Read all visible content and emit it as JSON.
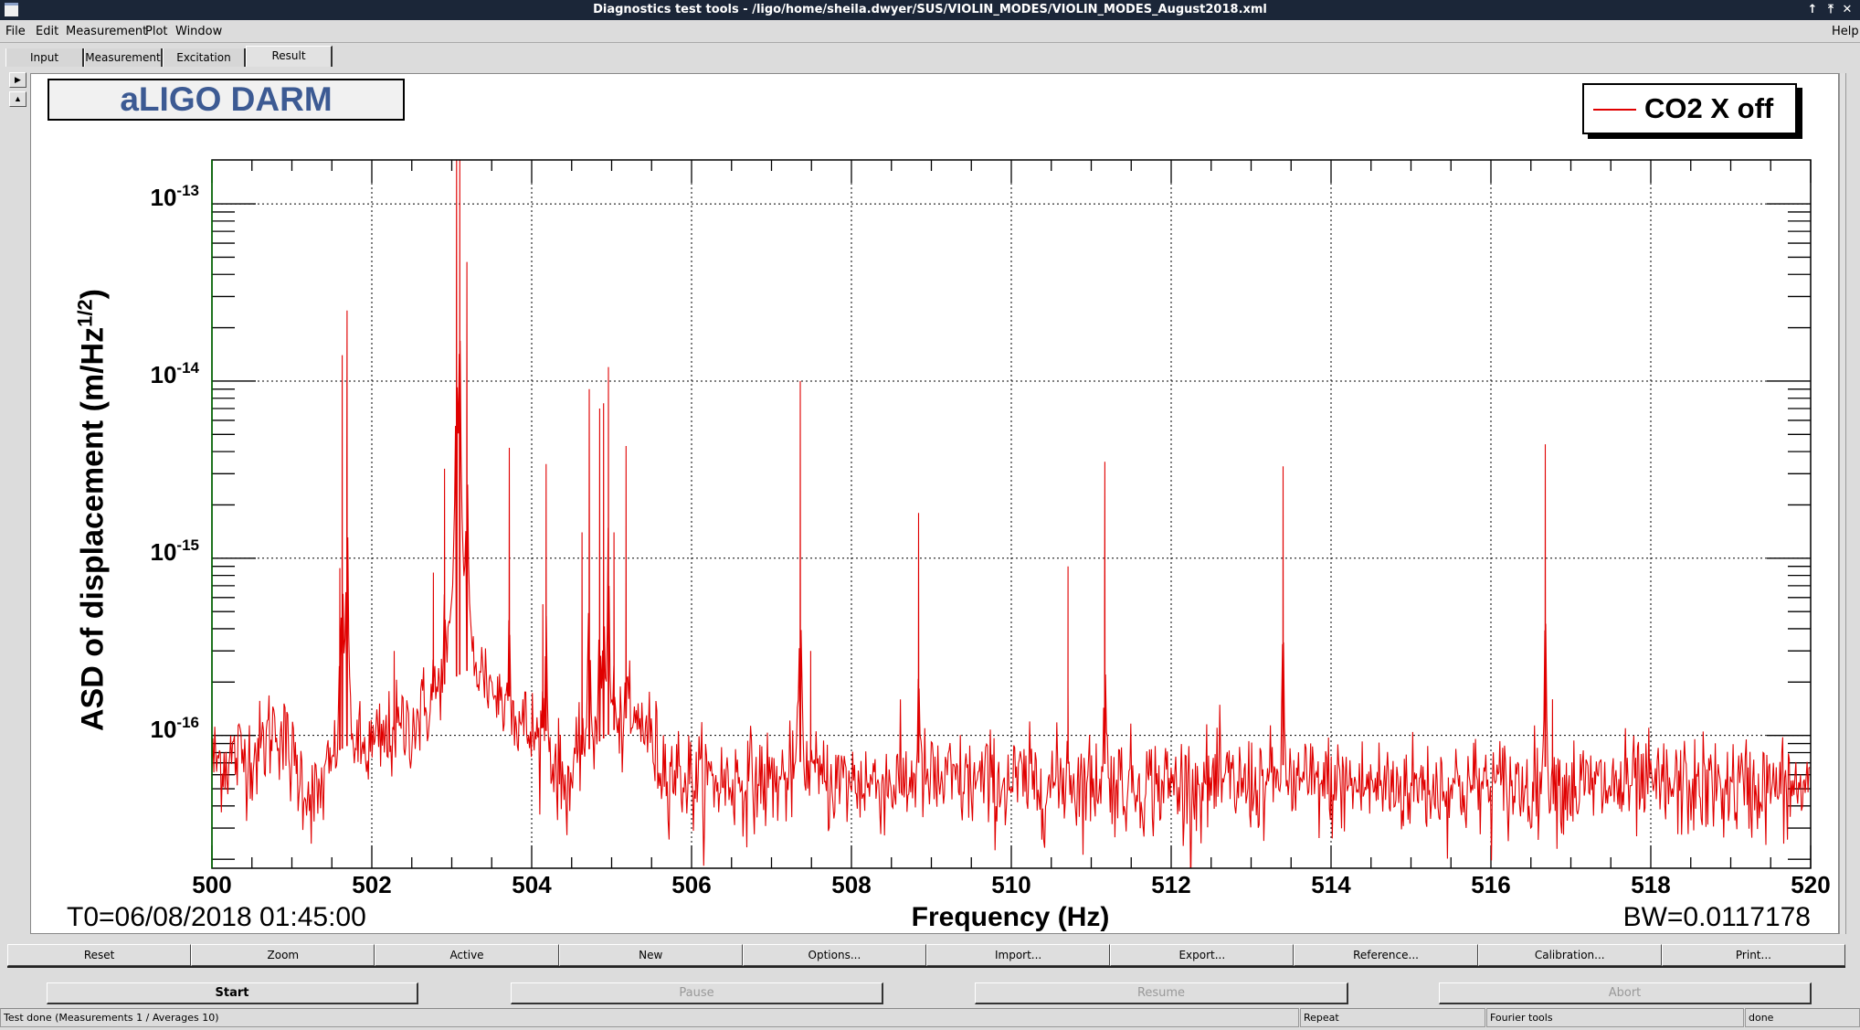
{
  "window": {
    "title": "Diagnostics test tools - /ligo/home/sheila.dwyer/SUS/VIOLIN_MODES/VIOLIN_MODES_August2018.xml"
  },
  "menu": [
    "File",
    "Edit",
    "Measurement",
    "Plot",
    "Window"
  ],
  "menu_help": "Help",
  "tabs": [
    "Input",
    "Measurement",
    "Excitation",
    "Result"
  ],
  "active_tab": "Result",
  "plot": {
    "title_box": "aLIGO DARM",
    "t0": "T0=06/08/2018 01:45:00",
    "bw": "BW=0.0117178"
  },
  "chart_data": {
    "type": "line",
    "xlabel": "Frequency (Hz)",
    "ylabel": "ASD of displacement (m/Hz",
    "ylabel_sup": "1/2",
    "ylabel_end": ")",
    "xlim": [
      500,
      520
    ],
    "ylim": [
      1.78e-17,
      1.77e-13
    ],
    "yscale": "log",
    "grid": true,
    "legend_position": "top-right",
    "xticks": [
      {
        "value": 500,
        "label": "500"
      },
      {
        "value": 502,
        "label": "502"
      },
      {
        "value": 504,
        "label": "504"
      },
      {
        "value": 506,
        "label": "506"
      },
      {
        "value": 508,
        "label": "508"
      },
      {
        "value": 510,
        "label": "510"
      },
      {
        "value": 512,
        "label": "512"
      },
      {
        "value": 514,
        "label": "514"
      },
      {
        "value": 516,
        "label": "516"
      },
      {
        "value": 518,
        "label": "518"
      },
      {
        "value": 520,
        "label": "520"
      }
    ],
    "yticks": [
      {
        "value": 1e-13,
        "base": "10",
        "exp": "-13"
      },
      {
        "value": 1e-14,
        "base": "10",
        "exp": "-14"
      },
      {
        "value": 1e-15,
        "base": "10",
        "exp": "-15"
      },
      {
        "value": 1e-16,
        "base": "10",
        "exp": "-16"
      }
    ],
    "series": [
      {
        "name": "CO2 X off",
        "color": "#e00000",
        "resolution_hz": 0.0117178,
        "noise_floor": [
          [
            500,
            7e-17
          ],
          [
            500.6,
            8e-17
          ],
          [
            500.8,
            1.2e-16
          ],
          [
            501.0,
            7e-17
          ],
          [
            501.3,
            4e-17
          ],
          [
            501.5,
            6e-17
          ],
          [
            502,
            8e-17
          ],
          [
            502.5,
            1.1e-16
          ],
          [
            503,
            1.6e-16
          ],
          [
            503.4,
            2e-16
          ],
          [
            503.7,
            1.3e-16
          ],
          [
            504.2,
            8e-17
          ],
          [
            504.4,
            5e-17
          ],
          [
            505,
            8e-17
          ],
          [
            505.4,
            1.2e-16
          ],
          [
            505.6,
            7e-17
          ],
          [
            506,
            5.5e-17
          ],
          [
            520,
            5e-17
          ]
        ],
        "peaks": [
          [
            501.6,
            8.8e-16
          ],
          [
            501.63,
            1.4e-14
          ],
          [
            501.69,
            2.5e-14
          ],
          [
            502.28,
            3e-16
          ],
          [
            502.77,
            8.3e-16
          ],
          [
            502.91,
            3.2e-15
          ],
          [
            503.06,
            2e-13
          ],
          [
            503.1,
            1.9e-13
          ],
          [
            503.19,
            4.7e-14
          ],
          [
            503.72,
            4.2e-15
          ],
          [
            504.14,
            5.5e-16
          ],
          [
            504.18,
            3.4e-15
          ],
          [
            504.63,
            1.4e-15
          ],
          [
            504.72,
            9e-15
          ],
          [
            504.85,
            7e-15
          ],
          [
            504.9,
            7.5e-15
          ],
          [
            504.96,
            1.2e-14
          ],
          [
            505.03,
            1.4e-15
          ],
          [
            505.18,
            4.3e-15
          ],
          [
            507.36,
            1e-14
          ],
          [
            507.49,
            3e-16
          ],
          [
            508.84,
            1.8e-15
          ],
          [
            510.71,
            9e-16
          ],
          [
            511.17,
            3.5e-15
          ],
          [
            513.4,
            3.3e-15
          ],
          [
            516.68,
            4.4e-15
          ],
          [
            516.77,
            1.6e-16
          ]
        ]
      }
    ]
  },
  "plot_buttons": [
    "Reset",
    "Zoom",
    "Active",
    "New",
    "Options...",
    "Import...",
    "Export...",
    "Reference...",
    "Calibration...",
    "Print..."
  ],
  "controls": {
    "start": "Start",
    "pause": "Pause",
    "resume": "Resume",
    "abort": "Abort"
  },
  "status": {
    "message": "Test done (Measurements 1 / Averages 10)",
    "repeat": "Repeat",
    "tool": "Fourier tools",
    "state": "done"
  }
}
